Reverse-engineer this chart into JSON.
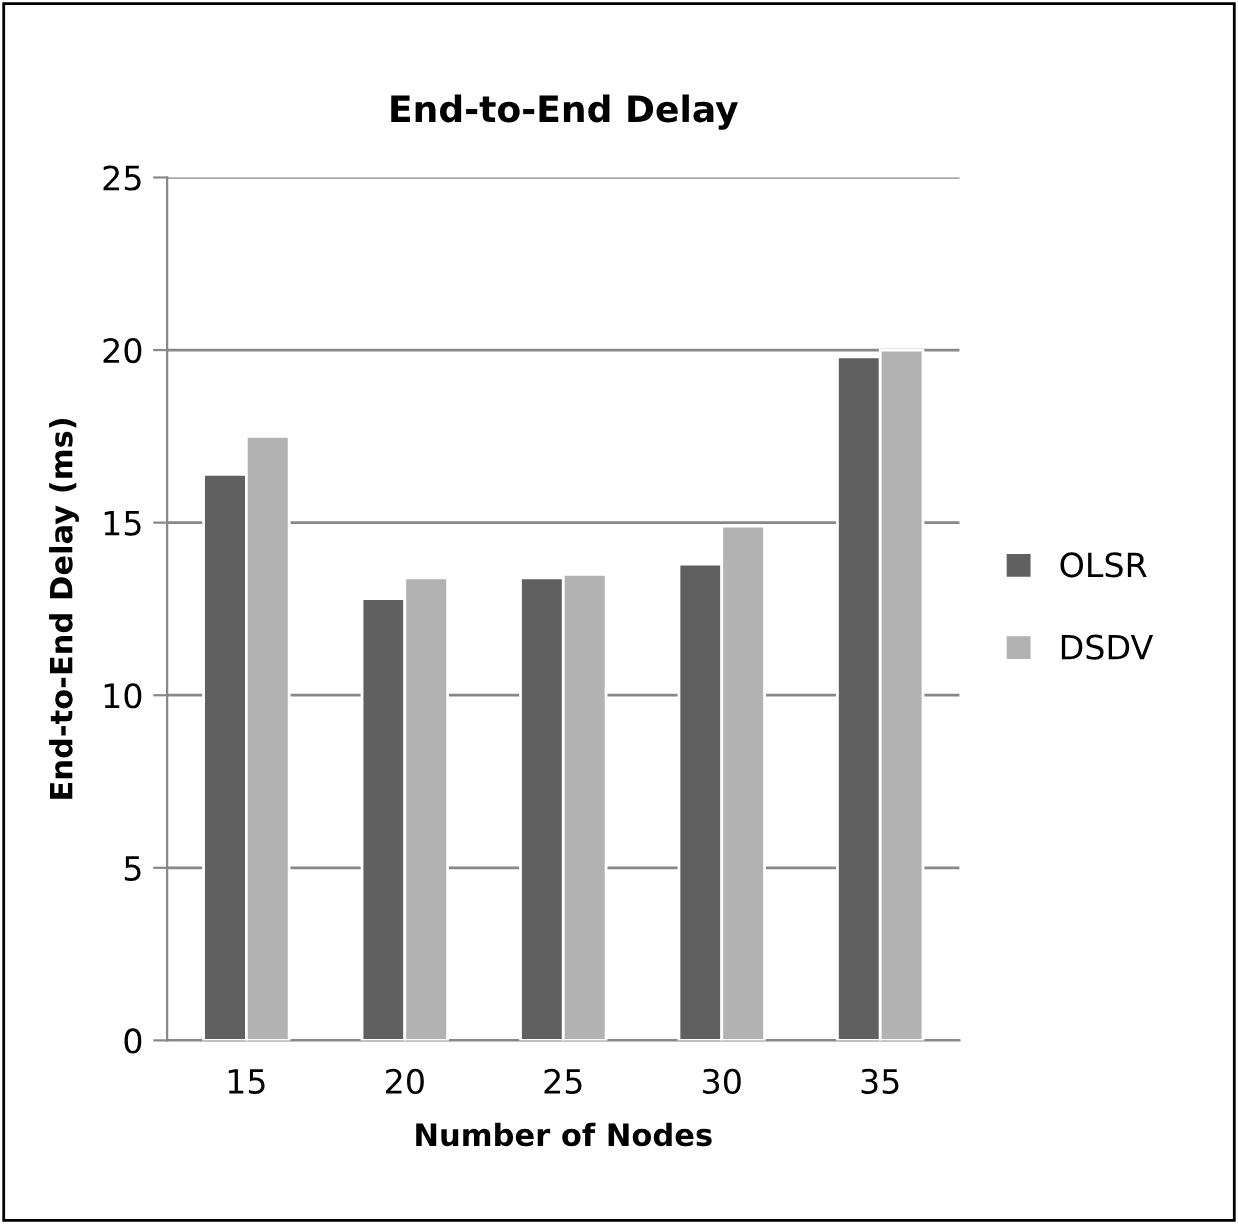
{
  "chart_data": {
    "type": "bar",
    "title": "End-to-End Delay",
    "xlabel": "Number of Nodes",
    "ylabel": "End-to-End Delay (ms)",
    "categories": [
      "15",
      "20",
      "25",
      "30",
      "35"
    ],
    "series": [
      {
        "name": "OLSR",
        "color": "#606060",
        "values": [
          16.4,
          12.8,
          13.4,
          13.8,
          19.8
        ]
      },
      {
        "name": "DSDV",
        "color": "#b2b2b2",
        "values": [
          17.5,
          13.4,
          13.5,
          14.9,
          20.0
        ]
      }
    ],
    "ylim": [
      0,
      25
    ],
    "yticks": [
      0,
      5,
      10,
      15,
      20,
      25
    ],
    "grid": "y",
    "legend": "right"
  }
}
